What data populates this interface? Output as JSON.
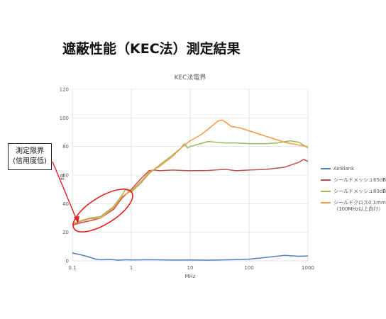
{
  "page": {
    "title": "遮蔽性能（KEC法）測定結果",
    "note_lines": [
      "測定限界",
      "(信用度低)"
    ]
  },
  "chart_data": {
    "type": "line",
    "title": "KEC法電界",
    "xlabel": "MHz",
    "ylabel": "dB",
    "xscale": "log",
    "xlim": [
      0.1,
      1000
    ],
    "ylim": [
      0,
      120
    ],
    "x_ticks": [
      "0.1",
      "1",
      "10",
      "100",
      "1000"
    ],
    "y_ticks": [
      "0",
      "20",
      "40",
      "60",
      "80",
      "100",
      "120"
    ],
    "grid": "horizontal lines plus vertical lines at decades",
    "legend_position": "right",
    "series": [
      {
        "name": "AirBlank",
        "color": "#4f81bd",
        "points": [
          [
            0.1,
            5.5
          ],
          [
            0.13,
            4.5
          ],
          [
            0.18,
            3.0
          ],
          [
            0.25,
            1.2
          ],
          [
            0.3,
            0.8
          ],
          [
            0.45,
            1.0
          ],
          [
            0.6,
            0.5
          ],
          [
            0.8,
            0.8
          ],
          [
            1,
            0.7
          ],
          [
            2,
            0.8
          ],
          [
            5,
            0.6
          ],
          [
            10,
            0.7
          ],
          [
            20,
            0.5
          ],
          [
            50,
            0.8
          ],
          [
            100,
            1.2
          ],
          [
            200,
            2.5
          ],
          [
            400,
            3.8
          ],
          [
            700,
            3.2
          ],
          [
            1000,
            3.4
          ]
        ]
      },
      {
        "name": "シールドメッシュ65dB",
        "color": "#c0504d",
        "points": [
          [
            0.1,
            25
          ],
          [
            0.15,
            27
          ],
          [
            0.2,
            28
          ],
          [
            0.3,
            30
          ],
          [
            0.5,
            36
          ],
          [
            0.7,
            44
          ],
          [
            1,
            50
          ],
          [
            1.5,
            58
          ],
          [
            2,
            63
          ],
          [
            2.5,
            63.5
          ],
          [
            3,
            63
          ],
          [
            5,
            63.5
          ],
          [
            10,
            63
          ],
          [
            20,
            63.2
          ],
          [
            40,
            64
          ],
          [
            60,
            63
          ],
          [
            100,
            63.5
          ],
          [
            200,
            64
          ],
          [
            400,
            65.5
          ],
          [
            700,
            69
          ],
          [
            850,
            71
          ],
          [
            1000,
            69.5
          ]
        ]
      },
      {
        "name": "シールドメッシュ83dB",
        "color": "#9bbb59",
        "points": [
          [
            0.1,
            26
          ],
          [
            0.15,
            28.5
          ],
          [
            0.2,
            30
          ],
          [
            0.3,
            31
          ],
          [
            0.5,
            38
          ],
          [
            0.7,
            46
          ],
          [
            0.8,
            50
          ],
          [
            1,
            48
          ],
          [
            1.5,
            55
          ],
          [
            2,
            61
          ],
          [
            3,
            67
          ],
          [
            5,
            74
          ],
          [
            7,
            79
          ],
          [
            8,
            82
          ],
          [
            9,
            79
          ],
          [
            10,
            80
          ],
          [
            20,
            83.5
          ],
          [
            40,
            82.5
          ],
          [
            60,
            82.5
          ],
          [
            100,
            82
          ],
          [
            200,
            82
          ],
          [
            300,
            82.5
          ],
          [
            500,
            84
          ],
          [
            700,
            83
          ],
          [
            1000,
            79
          ]
        ]
      },
      {
        "name": "シールドクロス0.1mm（100MHz以上向け）",
        "legend_lines": [
          "シールドクロス0.1mm",
          "（100MHz以上向け）"
        ],
        "color": "#f79646",
        "points": [
          [
            0.1,
            25.5
          ],
          [
            0.15,
            28
          ],
          [
            0.2,
            29.5
          ],
          [
            0.3,
            30
          ],
          [
            0.5,
            37
          ],
          [
            0.7,
            45
          ],
          [
            1,
            49
          ],
          [
            1.5,
            56
          ],
          [
            2,
            62
          ],
          [
            3,
            66
          ],
          [
            5,
            73
          ],
          [
            7,
            79
          ],
          [
            10,
            84
          ],
          [
            15,
            88
          ],
          [
            20,
            92
          ],
          [
            30,
            98
          ],
          [
            35,
            98.5
          ],
          [
            40,
            97
          ],
          [
            50,
            94
          ],
          [
            70,
            93
          ],
          [
            100,
            91
          ],
          [
            200,
            87
          ],
          [
            400,
            83
          ],
          [
            700,
            81
          ],
          [
            1000,
            80
          ]
        ]
      }
    ]
  }
}
